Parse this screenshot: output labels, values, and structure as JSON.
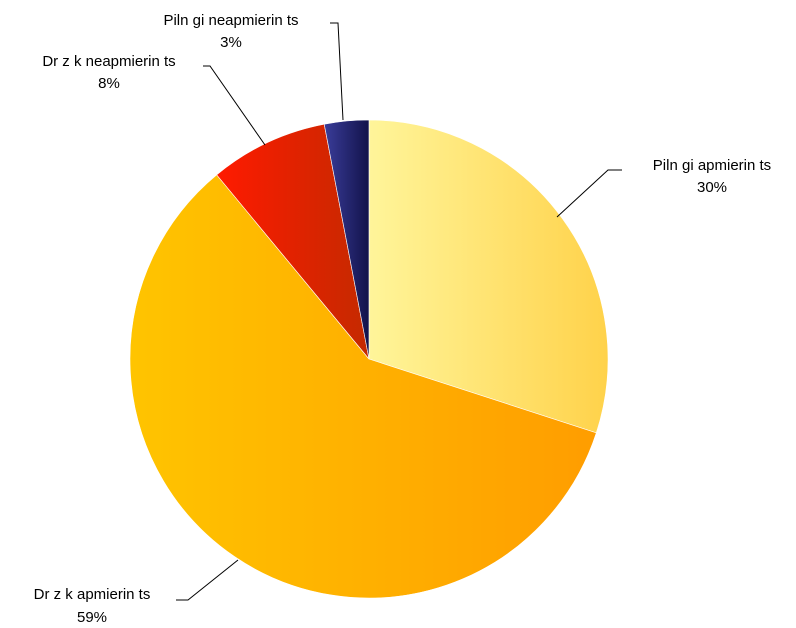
{
  "chart_data": {
    "type": "pie",
    "title": "",
    "slices": [
      {
        "label": "Piln gi apmierin ts",
        "percent_label": "30%",
        "value": 30,
        "color_light": "#fff59a",
        "color_dark": "#ffd24a"
      },
      {
        "label": "Dr z k apmierin ts",
        "percent_label": "59%",
        "value": 59,
        "color_light": "#ffc400",
        "color_dark": "#ff9d00"
      },
      {
        "label": "Dr z k neapmierin ts",
        "percent_label": "8%",
        "value": 8,
        "color_light": "#ff1a00",
        "color_dark": "#c42a00"
      },
      {
        "label": "Piln gi neapmierin ts",
        "percent_label": "3%",
        "value": 3,
        "color_light": "#3a3d9a",
        "color_dark": "#12124a"
      }
    ]
  }
}
